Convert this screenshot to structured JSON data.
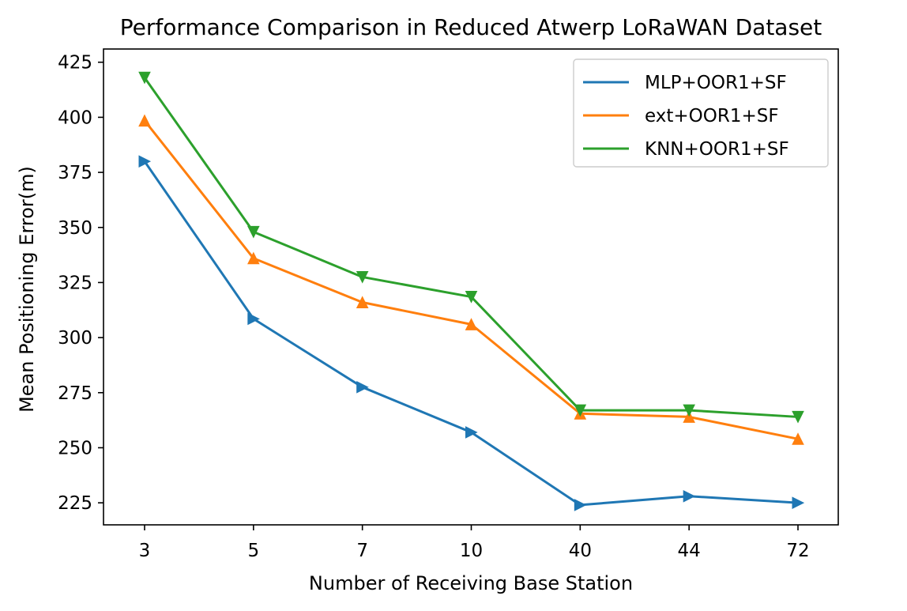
{
  "chart_data": {
    "type": "line",
    "title": "Performance Comparison in Reduced Atwerp LoRaWAN Dataset",
    "xlabel": "Number of Receiving Base Station",
    "ylabel": "Mean Positioning Error(m)",
    "categories": [
      "3",
      "5",
      "7",
      "10",
      "40",
      "44",
      "72"
    ],
    "ylim": [
      215,
      431
    ],
    "yticks": [
      225,
      250,
      275,
      300,
      325,
      350,
      375,
      400,
      425
    ],
    "grid": false,
    "legend_position": "top-right",
    "series": [
      {
        "name": "MLP+OOR1+SF",
        "color": "#1f77b4",
        "marker": "triangle-right",
        "values": [
          380,
          308.5,
          277.5,
          257,
          224,
          228,
          225
        ]
      },
      {
        "name": "ext+OOR1+SF",
        "color": "#ff7f0e",
        "marker": "triangle-up",
        "values": [
          398.5,
          336,
          316,
          306,
          265.5,
          264,
          254
        ]
      },
      {
        "name": "KNN+OOR1+SF",
        "color": "#2ca02c",
        "marker": "triangle-down",
        "values": [
          418,
          348,
          327.5,
          318.5,
          267,
          267,
          264
        ]
      }
    ]
  }
}
